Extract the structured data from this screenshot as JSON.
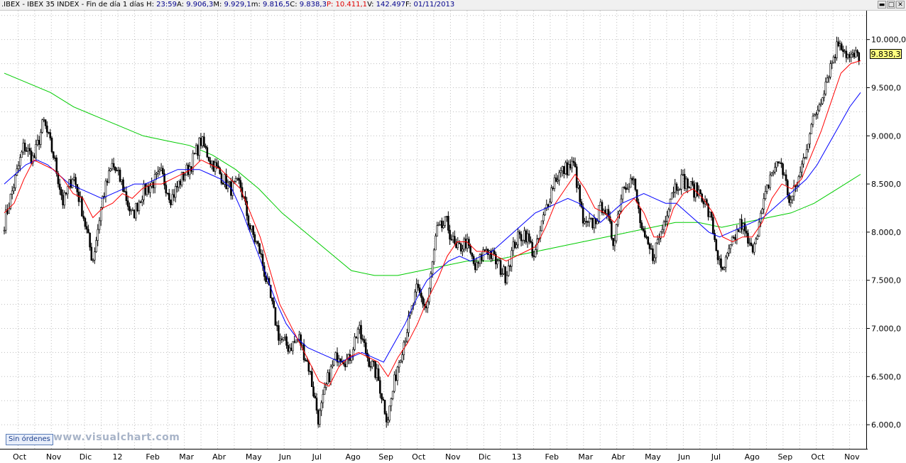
{
  "header": {
    "symbol": ".IBEX - IBEX 35 INDEX - Fin de día 1 días",
    "fields": [
      {
        "k": "H:",
        "v": "23:59"
      },
      {
        "k": "A:",
        "v": "9.906,3"
      },
      {
        "k": "M:",
        "v": "9.929,1"
      },
      {
        "k": "m:",
        "v": "9.816,5"
      },
      {
        "k": "C:",
        "v": "9.838,3"
      },
      {
        "k": "P",
        "v": ": 10.411,1",
        "color": "#e00000"
      },
      {
        "k": "V:",
        "v": "142.497"
      },
      {
        "k": "F:",
        "v": "01/11/2013"
      }
    ]
  },
  "window_buttons": [
    "▬",
    "□",
    "✕"
  ],
  "orders_label": "Sin órdenes",
  "watermark": "www.visualchart.com",
  "last_price": "9.838,3",
  "colors": {
    "ma_short": "#ff0000",
    "ma_mid": "#0000ff",
    "ma_long": "#00cc00",
    "candles": "#000000",
    "last_box": "#ffff80"
  },
  "chart_data": {
    "type": "line",
    "y_ticks": [
      {
        "value": 6000,
        "label": "6.000,0"
      },
      {
        "value": 6500,
        "label": "6.500,0"
      },
      {
        "value": 7000,
        "label": "7.000,0"
      },
      {
        "value": 7500,
        "label": "7.500,0"
      },
      {
        "value": 8000,
        "label": "8.000,0"
      },
      {
        "value": 8500,
        "label": "8.500,0"
      },
      {
        "value": 9000,
        "label": "9.000,0"
      },
      {
        "value": 9500,
        "label": "9.500,0"
      },
      {
        "value": 10000,
        "label": "10.000,0"
      }
    ],
    "ylim": [
      5750,
      10300
    ],
    "x_labels": [
      "Oct",
      "Nov",
      "Dic",
      "12",
      "Feb",
      "Mar",
      "Abr",
      "May",
      "Jun",
      "Jul",
      "Ago",
      "Sep",
      "Oct",
      "Nov",
      "Dic",
      "13",
      "Feb",
      "Mar",
      "Abr",
      "May",
      "Jun",
      "Jul",
      "Ago",
      "Sep",
      "Oct",
      "Nov"
    ],
    "grid": true,
    "series": [
      {
        "role": "price",
        "values": [
          8100,
          8500,
          8900,
          8750,
          9150,
          8800,
          8300,
          8600,
          8200,
          7700,
          8350,
          8700,
          8500,
          8150,
          8400,
          8500,
          8600,
          8350,
          8550,
          8700,
          8950,
          8750,
          8600,
          8450,
          8500,
          8050,
          7800,
          7350,
          6900,
          6800,
          6900,
          6600,
          6050,
          6500,
          6750,
          6650,
          7000,
          6700,
          6500,
          6050,
          6600,
          7000,
          7400,
          7200,
          8000,
          8100,
          7800,
          7900,
          7600,
          7850,
          7700,
          7550,
          7900,
          8000,
          7750,
          8200,
          8550,
          8650,
          8700,
          8050,
          8100,
          8300,
          7900,
          8500,
          8550,
          7950,
          7750,
          8050,
          8450,
          8550,
          8450,
          8400,
          8100,
          7550,
          7850,
          8100,
          7800,
          8150,
          8600,
          8750,
          8300,
          8600,
          9050,
          9350,
          9700,
          10000,
          9800,
          9840
        ]
      },
      {
        "role": "ma_short",
        "values": [
          8200,
          8300,
          8550,
          8750,
          8700,
          8650,
          8550,
          8400,
          8350,
          8150,
          8250,
          8300,
          8400,
          8350,
          8450,
          8500,
          8500,
          8550,
          8600,
          8650,
          8750,
          8700,
          8650,
          8550,
          8450,
          8200,
          7950,
          7600,
          7250,
          7050,
          6850,
          6650,
          6450,
          6400,
          6600,
          6700,
          6750,
          6700,
          6650,
          6500,
          6700,
          6850,
          7050,
          7300,
          7500,
          7750,
          7900,
          7900,
          7800,
          7800,
          7750,
          7700,
          7750,
          7800,
          7850,
          8050,
          8300,
          8450,
          8600,
          8450,
          8250,
          8200,
          8100,
          8250,
          8350,
          8200,
          7950,
          7950,
          8250,
          8400,
          8450,
          8350,
          8200,
          7950,
          7900,
          7950,
          7950,
          8100,
          8350,
          8500,
          8450,
          8550,
          8800,
          9050,
          9350,
          9650,
          9750,
          9780
        ]
      },
      {
        "role": "ma_mid",
        "values": [
          8500,
          8600,
          8700,
          8750,
          8700,
          8600,
          8500,
          8450,
          8400,
          8350,
          8400,
          8450,
          8500,
          8500,
          8550,
          8600,
          8650,
          8650,
          8650,
          8600,
          8550,
          8450,
          8200,
          7900,
          7600,
          7300,
          7050,
          6900,
          6800,
          6750,
          6700,
          6650,
          6700,
          6750,
          6700,
          6650,
          6850,
          7050,
          7300,
          7500,
          7600,
          7700,
          7750,
          7700,
          7750,
          7800,
          7900,
          8000,
          8100,
          8200,
          8250,
          8300,
          8350,
          8300,
          8200,
          8100,
          8200,
          8300,
          8350,
          8400,
          8350,
          8300,
          8300,
          8200,
          8100,
          8000,
          7950,
          8000,
          8050,
          8100,
          8150,
          8250,
          8350,
          8450,
          8550,
          8700,
          8900,
          9100,
          9300,
          9450
        ]
      },
      {
        "role": "ma_long",
        "values": [
          9650,
          9550,
          9450,
          9300,
          9200,
          9100,
          9000,
          8950,
          8900,
          8800,
          8650,
          8450,
          8200,
          8000,
          7800,
          7600,
          7550,
          7550,
          7600,
          7650,
          7700,
          7700,
          7750,
          7800,
          7850,
          7900,
          7950,
          8000,
          8050,
          8100,
          8100,
          8050,
          8100,
          8150,
          8200,
          8300,
          8450,
          8600
        ]
      }
    ]
  }
}
